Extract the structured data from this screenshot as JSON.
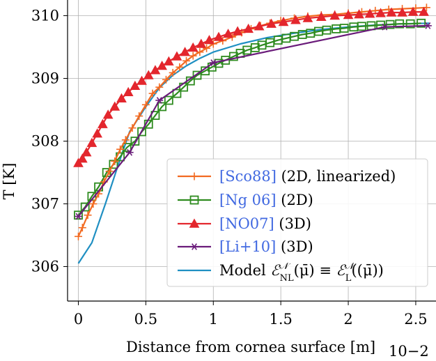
{
  "chart_data": {
    "type": "line",
    "xlabel": "Distance from cornea surface [m]",
    "x_multiplier": "10−2",
    "ylabel": "T [K]",
    "xlim": [
      -0.08,
      2.65
    ],
    "ylim": [
      305.45,
      310.25
    ],
    "x_ticks": [
      0,
      0.5,
      1,
      1.5,
      2,
      2.5
    ],
    "x_tick_labels": [
      "0",
      "0.5",
      "1",
      "1.5",
      "2",
      "2.5"
    ],
    "y_ticks": [
      306,
      307,
      308,
      309,
      310
    ],
    "y_tick_labels": [
      "306",
      "307",
      "308",
      "309",
      "310"
    ],
    "grid": true,
    "legend_position": "lower-right",
    "series": [
      {
        "cite": "[Sco88]",
        "desc": " (2D, linearized)",
        "color": "#f26a21",
        "marker": "plus",
        "x": [
          0,
          0.03,
          0.07,
          0.11,
          0.15,
          0.19,
          0.23,
          0.27,
          0.31,
          0.35,
          0.4,
          0.45,
          0.5,
          0.55,
          0.6,
          0.65,
          0.7,
          0.75,
          0.8,
          0.85,
          0.9,
          0.95,
          1.0,
          1.07,
          1.14,
          1.21,
          1.28,
          1.35,
          1.42,
          1.5,
          1.6,
          1.7,
          1.8,
          1.9,
          2.0,
          2.1,
          2.2,
          2.3,
          2.4,
          2.5,
          2.58
        ],
        "y": [
          306.48,
          306.62,
          306.82,
          307.0,
          307.16,
          307.35,
          307.52,
          307.68,
          307.87,
          308.02,
          308.21,
          308.4,
          308.58,
          308.76,
          308.86,
          308.98,
          309.09,
          309.18,
          309.28,
          309.36,
          309.42,
          309.48,
          309.55,
          309.6,
          309.66,
          309.73,
          309.79,
          309.84,
          309.88,
          309.92,
          309.96,
          309.99,
          310.01,
          310.02,
          310.04,
          310.06,
          310.08,
          310.1,
          310.11,
          310.12,
          310.13
        ]
      },
      {
        "cite": "[Ng 06]",
        "desc": " (2D)",
        "color": "#2e8b1f",
        "marker": "square",
        "x": [
          0,
          0.05,
          0.1,
          0.15,
          0.21,
          0.26,
          0.31,
          0.36,
          0.42,
          0.47,
          0.52,
          0.57,
          0.62,
          0.67,
          0.73,
          0.78,
          0.83,
          0.88,
          0.94,
          0.99,
          1.04,
          1.09,
          1.15,
          1.2,
          1.25,
          1.31,
          1.36,
          1.42,
          1.48,
          1.54,
          1.6,
          1.66,
          1.72,
          1.78,
          1.84,
          1.91,
          1.97,
          2.04,
          2.1,
          2.17,
          2.24,
          2.31,
          2.38,
          2.46,
          2.54
        ],
        "y": [
          306.82,
          306.95,
          307.12,
          307.27,
          307.5,
          307.63,
          307.75,
          307.9,
          308.0,
          308.15,
          308.27,
          308.41,
          308.55,
          308.65,
          308.76,
          308.86,
          308.96,
          309.05,
          309.12,
          309.18,
          309.24,
          309.29,
          309.35,
          309.4,
          309.45,
          309.49,
          309.53,
          309.57,
          309.61,
          309.64,
          309.67,
          309.7,
          309.72,
          309.75,
          309.77,
          309.79,
          309.8,
          309.82,
          309.83,
          309.84,
          309.85,
          309.86,
          309.87,
          309.87,
          309.88
        ]
      },
      {
        "cite": "[NO07]",
        "desc": " (3D)",
        "color": "#e3262d",
        "marker": "triangle",
        "x": [
          0,
          0.03,
          0.06,
          0.1,
          0.14,
          0.18,
          0.22,
          0.27,
          0.32,
          0.37,
          0.42,
          0.47,
          0.52,
          0.57,
          0.62,
          0.67,
          0.73,
          0.79,
          0.85,
          0.91,
          0.97,
          1.04,
          1.11,
          1.18,
          1.26,
          1.34,
          1.43,
          1.52,
          1.61,
          1.7,
          1.8,
          1.9,
          2.0,
          2.08,
          2.16,
          2.24,
          2.32,
          2.4,
          2.48,
          2.56
        ],
        "y": [
          307.65,
          307.72,
          307.82,
          307.97,
          308.12,
          308.27,
          308.42,
          308.55,
          308.68,
          308.78,
          308.88,
          308.96,
          309.05,
          309.13,
          309.2,
          309.27,
          309.35,
          309.42,
          309.49,
          309.55,
          309.61,
          309.66,
          309.71,
          309.75,
          309.79,
          309.83,
          309.87,
          309.9,
          309.93,
          309.96,
          309.98,
          310.0,
          310.01,
          310.02,
          310.03,
          310.04,
          310.05,
          310.05,
          310.06,
          310.06
        ]
      },
      {
        "cite": "[Li+10]",
        "desc": " (3D)",
        "color": "#6a1b7a",
        "marker": "star",
        "x": [
          0,
          0.38,
          0.6,
          1.0,
          2.27,
          2.59
        ],
        "y": [
          306.8,
          307.82,
          308.65,
          309.25,
          309.82,
          309.84
        ]
      },
      {
        "label": "Model ℰᴺ(μ̄) ≡ ℰᴺ((μ̄))",
        "color": "#1f8fc2",
        "marker": "none",
        "x": [
          0,
          0.1,
          0.2,
          0.3,
          0.38,
          0.5,
          0.6,
          0.7,
          0.8,
          0.9,
          1.0,
          1.2,
          1.4,
          1.6,
          1.8,
          2.0,
          2.2,
          2.4,
          2.6
        ],
        "y": [
          306.05,
          306.38,
          307.0,
          307.65,
          308.15,
          308.55,
          308.85,
          309.05,
          309.2,
          309.32,
          309.42,
          309.55,
          309.65,
          309.72,
          309.78,
          309.82,
          309.85,
          309.87,
          309.88
        ]
      }
    ],
    "legend": [
      {
        "cite": "[Sco88]",
        "desc": " (2D, linearized)"
      },
      {
        "cite": "[Ng 06]",
        "desc": " (2D)"
      },
      {
        "cite": "[NO07]",
        "desc": " (3D)"
      },
      {
        "cite": "[Li+10]",
        "desc": " (3D)"
      },
      {
        "model_prefix": "Model ",
        "model_rest": "(μ̄) ≡ ",
        "model_tail": "((μ̄))"
      }
    ]
  }
}
